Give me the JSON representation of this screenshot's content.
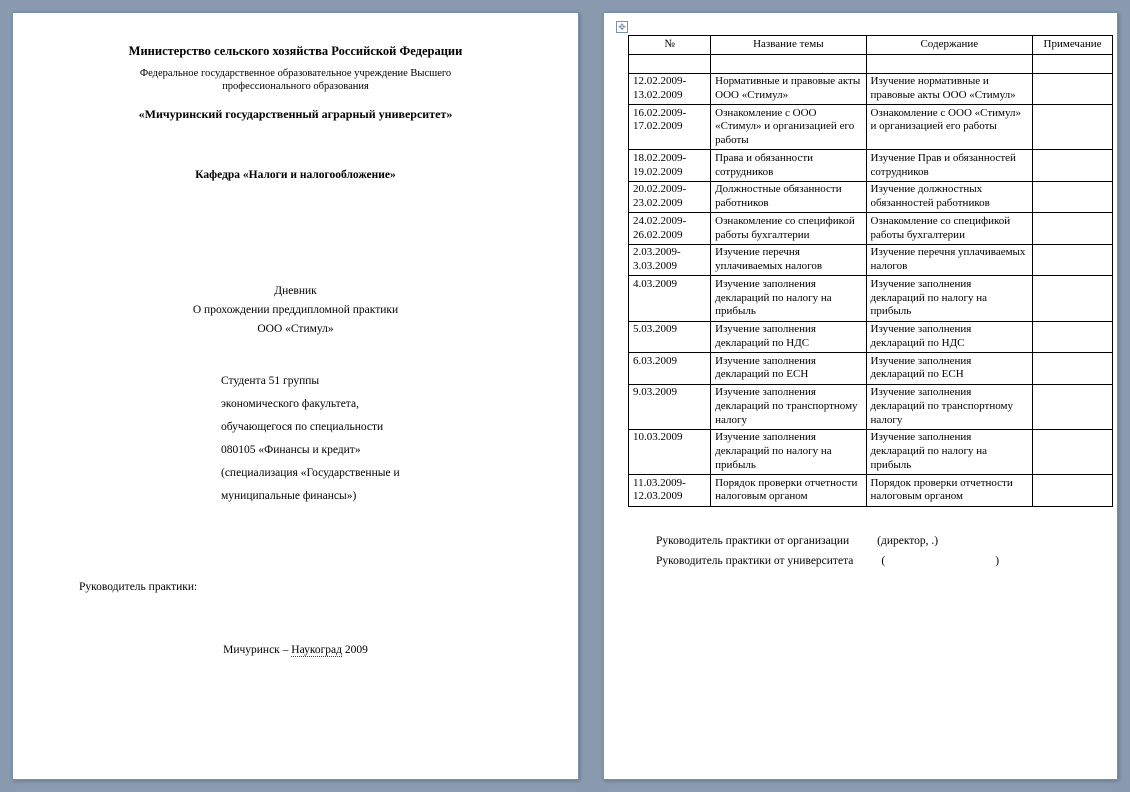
{
  "leftPage": {
    "ministry": "Министерство сельского хозяйства Российской Федерации",
    "institution_l1": "Федеральное государственное образовательное учреждение Высшего",
    "institution_l2": "профессионального образования",
    "university": "«Мичуринский государственный аграрный университет»",
    "department": "Кафедра «Налоги и налогообложение»",
    "diary_title": "Дневник",
    "diary_subtitle": "О прохождении  преддипломной   практики",
    "company": "ООО «Стимул»",
    "student_lines": [
      "Студента 51 группы",
      "экономического факультета,",
      "обучающегося по специальности",
      "080105 «Финансы и кредит»",
      "(специализация «Государственные и",
      "муниципальные финансы»)"
    ],
    "supervisor": "Руководитель практики:",
    "footer_city": "Мичуринск – ",
    "footer_naukograd": "Наукоград",
    "footer_year": " 2009"
  },
  "rightPage": {
    "headers": [
      "№",
      "Название темы",
      "Содержание",
      "Примечание"
    ],
    "rows": [
      {
        "no_l1": "12.02.2009-",
        "no_l2": "13.02.2009",
        "topic": "Нормативные и правовые акты ООО «Стимул»",
        "content": "Изучение нормативные и правовые акты ООО «Стимул»",
        "note": ""
      },
      {
        "no_l1": "16.02.2009-",
        "no_l2": "17.02.2009",
        "topic": "Ознакомление с ООО «Стимул» и организацией его работы",
        "content": "Ознакомление с ООО «Стимул» и организацией его работы",
        "note": ""
      },
      {
        "no_l1": "18.02.2009-",
        "no_l2": "19.02.2009",
        "topic": "Права и обязанности сотрудников",
        "content": "Изучение Прав и обязанностей сотрудников",
        "note": ""
      },
      {
        "no_l1": "20.02.2009-",
        "no_l2": "23.02.2009",
        "topic": "Должностные обязанности работников",
        "content": "Изучение должностных обязанностей работников",
        "note": ""
      },
      {
        "no_l1": "24.02.2009-",
        "no_l2": "26.02.2009",
        "topic": "Ознакомление со спецификой работы бухгалтерии",
        "content": "Ознакомление со спецификой работы бухгалтерии",
        "note": ""
      },
      {
        "no_l1": "2.03.2009-",
        "no_l2": "3.03.2009",
        "topic": "Изучение перечня уплачиваемых налогов",
        "content": "Изучение перечня уплачиваемых налогов",
        "note": ""
      },
      {
        "no_l1": "4.03.2009",
        "no_l2": "",
        "topic": "Изучение заполнения деклараций по налогу на прибыль",
        "content": "Изучение заполнения деклараций по налогу на прибыль",
        "note": ""
      },
      {
        "no_l1": "5.03.2009",
        "no_l2": "",
        "topic": "Изучение заполнения деклараций по НДС",
        "content": "Изучение заполнения деклараций по НДС",
        "note": ""
      },
      {
        "no_l1": "6.03.2009",
        "no_l2": "",
        "topic": "Изучение заполнения деклараций по ЕСН",
        "content": "Изучение заполнения деклараций по ЕСН",
        "note": ""
      },
      {
        "no_l1": "9.03.2009",
        "no_l2": "",
        "topic": "Изучение заполнения деклараций по транспортному налогу",
        "content": "Изучение заполнения деклараций по транспортному налогу",
        "note": ""
      },
      {
        "no_l1": "10.03.2009",
        "no_l2": "",
        "topic": "Изучение заполнения деклараций по налогу на прибыль",
        "content": "Изучение заполнения деклараций по налогу на прибыль",
        "note": ""
      },
      {
        "no_l1": "11.03.2009-",
        "no_l2": "12.03.2009",
        "topic": "Порядок проверки отчетности налоговым органом",
        "content": "Порядок проверки отчетности налоговым органом",
        "note": ""
      }
    ],
    "sig_org_label": "Руководитель практики от организации",
    "sig_org_paren": "(директор,  .)",
    "sig_univ_label": "Руководитель практики от университета",
    "sig_univ_paren_open": "(",
    "sig_univ_paren_close": ")"
  }
}
